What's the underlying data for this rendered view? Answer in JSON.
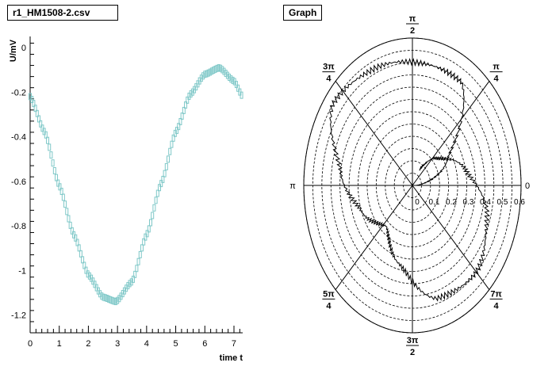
{
  "left": {
    "title": "r1_HM1508-2.csv",
    "chart_data": {
      "type": "scatter",
      "title": "r1_HM1508-2.csv",
      "xlabel": "time t",
      "ylabel": "U/mV",
      "xlim": [
        0,
        7.3
      ],
      "ylim": [
        -1.28,
        0.05
      ],
      "x_ticks": [
        "0",
        "1",
        "2",
        "3",
        "4",
        "5",
        "6",
        "7"
      ],
      "y_ticks": [
        "0",
        "-0.2",
        "-0.4",
        "-0.6",
        "-0.8",
        "-1",
        "-1.2"
      ],
      "x": [
        0.0,
        0.5,
        1.0,
        1.5,
        2.0,
        2.5,
        2.95,
        3.5,
        4.0,
        4.5,
        5.0,
        5.5,
        6.0,
        6.5,
        7.0,
        7.3
      ],
      "y": [
        -0.22,
        -0.38,
        -0.62,
        -0.84,
        -1.02,
        -1.12,
        -1.14,
        -1.05,
        -0.84,
        -0.61,
        -0.38,
        -0.21,
        -0.12,
        -0.09,
        -0.15,
        -0.22
      ],
      "marker_color": "#7fc8c8",
      "grid": false
    }
  },
  "right": {
    "title": "Graph",
    "chart_data": {
      "type": "polar",
      "title": "Graph",
      "radial_ticks": [
        "0",
        "0.1",
        "0.2",
        "0.3",
        "0.4",
        "0.5",
        "0.6"
      ],
      "angle_labels": [
        {
          "num": "",
          "sym": "0",
          "den": ""
        },
        {
          "num": "π",
          "sym": "",
          "den": "4"
        },
        {
          "num": "π",
          "sym": "",
          "den": "2"
        },
        {
          "num": "3π",
          "sym": "",
          "den": "4"
        },
        {
          "num": "",
          "sym": "π",
          "den": ""
        },
        {
          "num": "5π",
          "sym": "",
          "den": "4"
        },
        {
          "num": "3π",
          "sym": "",
          "den": "2"
        },
        {
          "num": "7π",
          "sym": "",
          "den": "4"
        }
      ],
      "rmax": 0.6,
      "grid": true,
      "series": [
        {
          "theta": [
            0.0,
            0.5,
            1.0,
            1.5,
            2.0,
            2.5,
            3.0,
            3.5,
            4.0,
            4.5,
            5.0,
            5.5,
            6.0,
            6.5,
            7.0,
            7.3
          ],
          "r": [
            0.02,
            0.22,
            0.5,
            0.5,
            0.52,
            0.55,
            0.4,
            0.3,
            0.22,
            0.33,
            0.48,
            0.5,
            0.43,
            0.3,
            0.17,
            0.08
          ]
        }
      ]
    }
  }
}
